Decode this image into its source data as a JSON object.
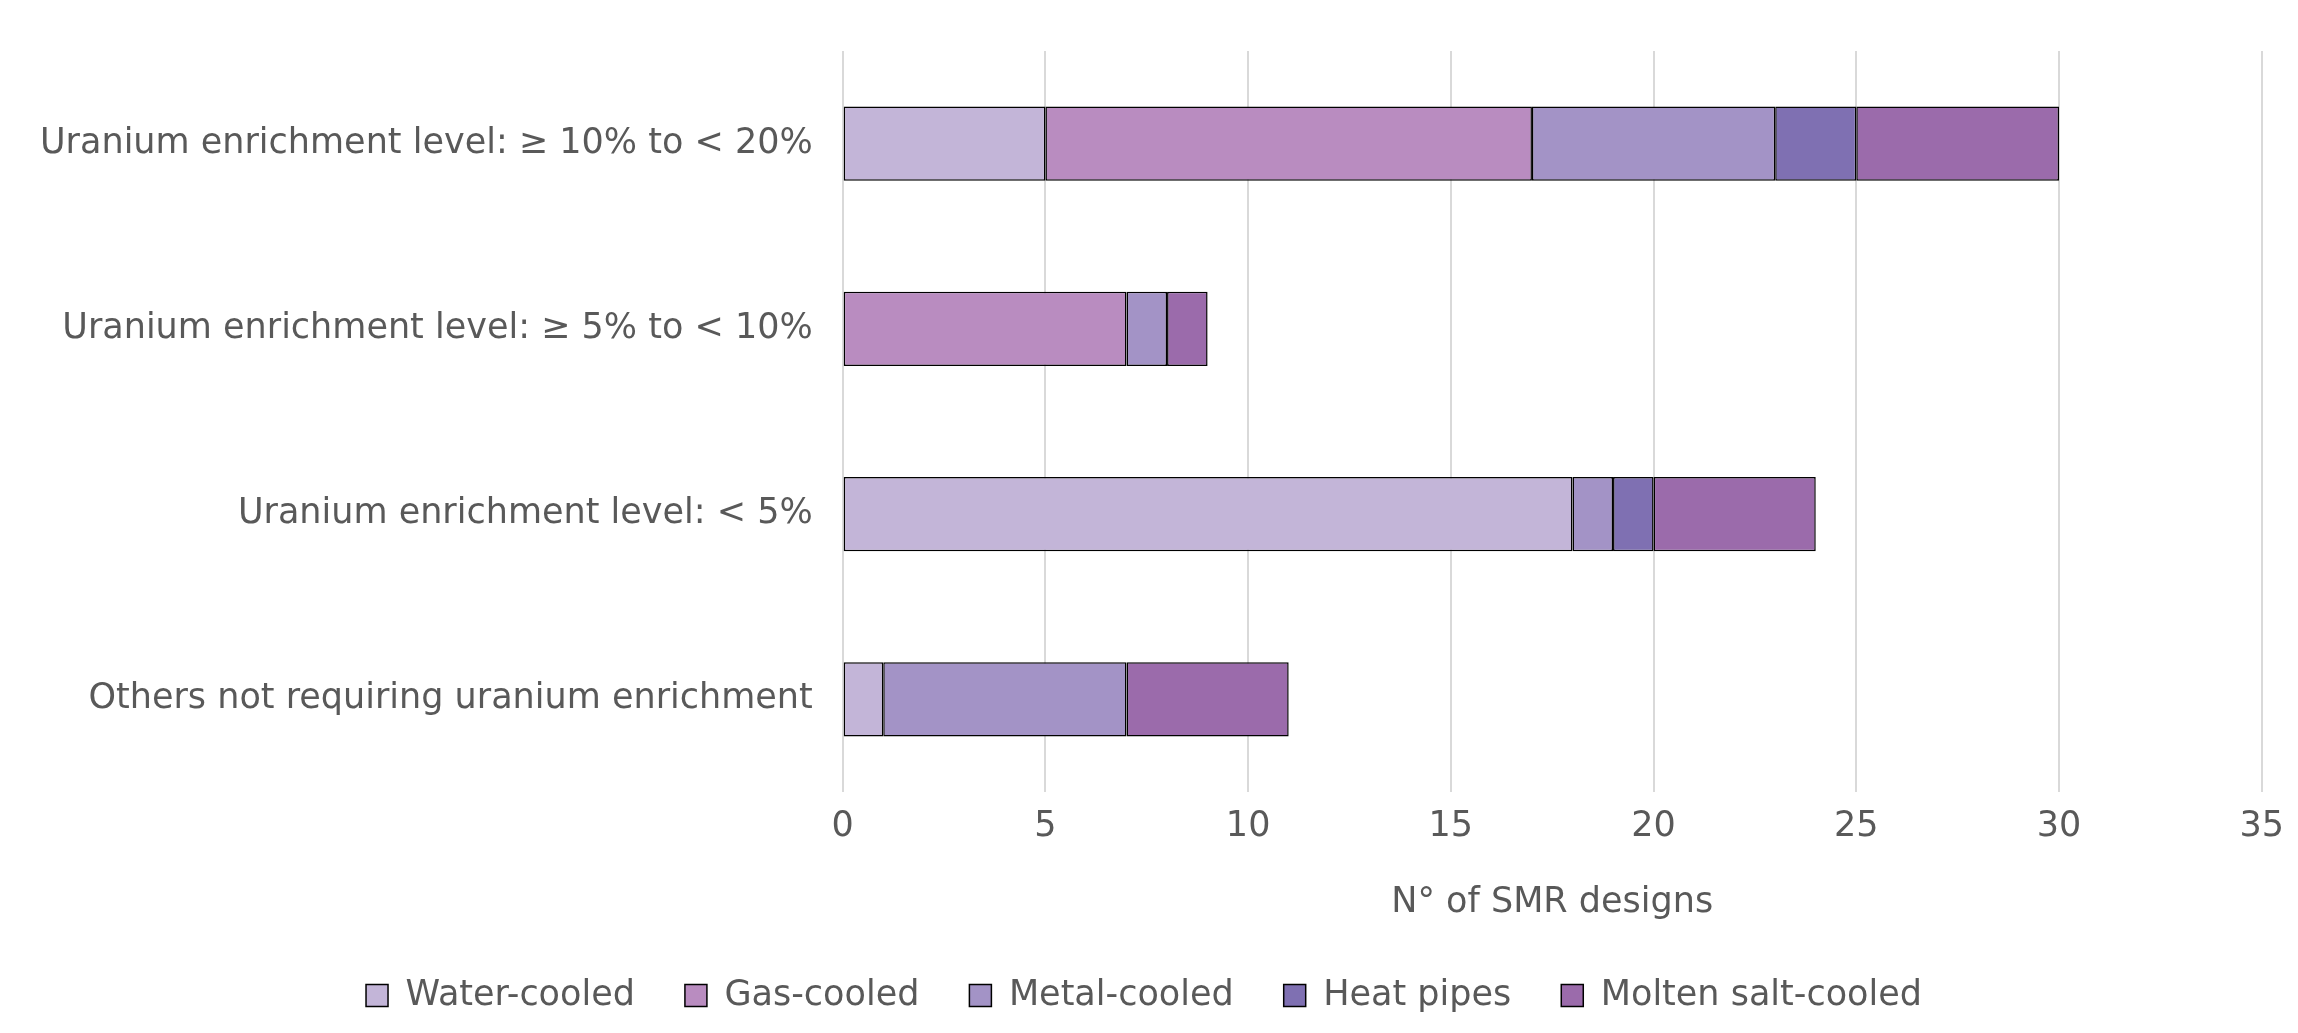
{
  "chart_data": {
    "type": "bar",
    "orientation": "horizontal",
    "stacked": true,
    "xlabel": "N° of SMR designs",
    "categories": [
      "Uranium enrichment level: ≥ 10% to < 20%",
      "Uranium enrichment level: ≥ 5% to < 10%",
      "Uranium enrichment level: < 5%",
      "Others not requiring uranium enrichment"
    ],
    "series": [
      {
        "name": "Water-cooled",
        "color": "#c3b5d8",
        "values": [
          5,
          0,
          18,
          1
        ]
      },
      {
        "name": "Gas-cooled",
        "color": "#b98cc0",
        "values": [
          12,
          7,
          0,
          0
        ]
      },
      {
        "name": "Metal-cooled",
        "color": "#a393c6",
        "values": [
          6,
          1,
          1,
          6
        ]
      },
      {
        "name": "Heat pipes",
        "color": "#7f70b2",
        "values": [
          2,
          0,
          1,
          0
        ]
      },
      {
        "name": "Molten salt-cooled",
        "color": "#9b6bab",
        "values": [
          5,
          1,
          4,
          4
        ]
      }
    ],
    "xlim": [
      0,
      35
    ],
    "xticks": [
      0,
      5,
      10,
      15,
      20,
      25,
      30,
      35
    ],
    "grid": "x",
    "legend": "bottom"
  }
}
